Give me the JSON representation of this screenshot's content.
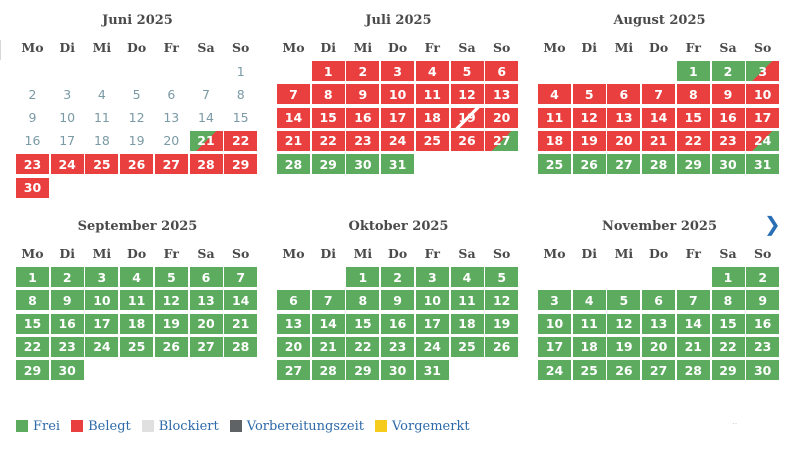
{
  "weekdays": [
    "Mo",
    "Di",
    "Mi",
    "Do",
    "Fr",
    "Sa",
    "So"
  ],
  "colors": {
    "frei": "#5cab5e",
    "belegt": "#ea3f3f",
    "blockiert": "#e0e0e0",
    "vorbereitungszeit": "#5f6366",
    "vorgemerkt": "#f5cc1b",
    "past_text": "#7a9aa5",
    "link": "#2d6aa8"
  },
  "months": [
    {
      "title": "Juni 2025",
      "start_weekday": 6,
      "days": [
        "past",
        "past",
        "past",
        "past",
        "past",
        "past",
        "past",
        "past",
        "past",
        "past",
        "past",
        "past",
        "past",
        "past",
        "past",
        "past",
        "past",
        "past",
        "past",
        "past",
        "free-busy",
        "busy",
        "busy",
        "busy",
        "busy",
        "busy",
        "busy",
        "busy",
        "busy",
        "busy"
      ]
    },
    {
      "title": "Juli 2025",
      "start_weekday": 1,
      "days": [
        "busy",
        "busy",
        "busy",
        "busy",
        "busy",
        "busy",
        "busy",
        "busy",
        "busy",
        "busy",
        "busy",
        "busy",
        "busy",
        "busy",
        "busy",
        "busy",
        "busy",
        "busy",
        "busy-slash",
        "busy",
        "busy",
        "busy",
        "busy",
        "busy",
        "busy",
        "busy",
        "busy-free",
        "free",
        "free",
        "free",
        "free"
      ]
    },
    {
      "title": "August 2025",
      "start_weekday": 4,
      "days": [
        "free",
        "free",
        "free-busy",
        "busy",
        "busy",
        "busy",
        "busy",
        "busy",
        "busy",
        "busy",
        "busy",
        "busy",
        "busy",
        "busy",
        "busy",
        "busy",
        "busy",
        "busy",
        "busy",
        "busy",
        "busy",
        "busy",
        "busy",
        "busy-free",
        "free",
        "free",
        "free",
        "free",
        "free",
        "free",
        "free"
      ]
    },
    {
      "title": "September 2025",
      "start_weekday": 0,
      "days": [
        "free",
        "free",
        "free",
        "free",
        "free",
        "free",
        "free",
        "free",
        "free",
        "free",
        "free",
        "free",
        "free",
        "free",
        "free",
        "free",
        "free",
        "free",
        "free",
        "free",
        "free",
        "free",
        "free",
        "free",
        "free",
        "free",
        "free",
        "free",
        "free",
        "free"
      ]
    },
    {
      "title": "Oktober 2025",
      "start_weekday": 2,
      "days": [
        "free",
        "free",
        "free",
        "free",
        "free",
        "free",
        "free",
        "free",
        "free",
        "free",
        "free",
        "free",
        "free",
        "free",
        "free",
        "free",
        "free",
        "free",
        "free",
        "free",
        "free",
        "free",
        "free",
        "free",
        "free",
        "free",
        "free",
        "free",
        "free",
        "free",
        "free"
      ]
    },
    {
      "title": "November 2025",
      "start_weekday": 5,
      "days": [
        "free",
        "free",
        "free",
        "free",
        "free",
        "free",
        "free",
        "free",
        "free",
        "free",
        "free",
        "free",
        "free",
        "free",
        "free",
        "free",
        "free",
        "free",
        "free",
        "free",
        "free",
        "free",
        "free",
        "free",
        "free",
        "free",
        "free",
        "free",
        "free",
        "free"
      ]
    }
  ],
  "navigation": {
    "next_icon": "chevron-right-icon",
    "next_glyph": "❯"
  },
  "legend": [
    {
      "label": "Frei",
      "color": "#5cab5e"
    },
    {
      "label": "Belegt",
      "color": "#ea3f3f"
    },
    {
      "label": "Blockiert",
      "color": "#e0e0e0"
    },
    {
      "label": "Vorbereitungszeit",
      "color": "#5f6366"
    },
    {
      "label": "Vorgemerkt",
      "color": "#f5cc1b"
    }
  ]
}
